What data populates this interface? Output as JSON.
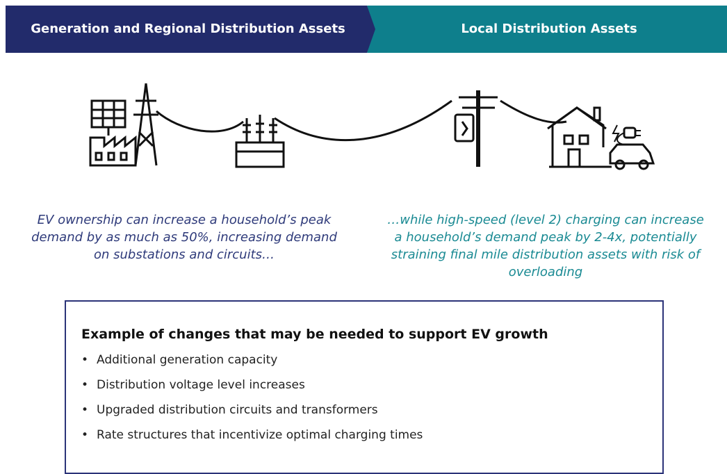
{
  "header": {
    "left": "Generation and Regional Distribution Assets",
    "right": "Local Distribution Assets"
  },
  "captions": {
    "left": [
      "EV ownership can increase a household’s peak",
      "demand by as much as 50%, increasing demand",
      "on substations and circuits…"
    ],
    "right": [
      "…while high-speed (level 2) charging can increase",
      "a household’s demand peak by 2-4x, potentially",
      "straining final mile distribution assets with risk of",
      "overloading"
    ]
  },
  "box": {
    "title": "Example of changes that may be needed to support EV growth",
    "items": [
      "Additional generation capacity",
      "Distribution voltage level increases",
      "Upgraded distribution circuits and transformers",
      "Rate structures that incentivize optimal charging times"
    ]
  }
}
